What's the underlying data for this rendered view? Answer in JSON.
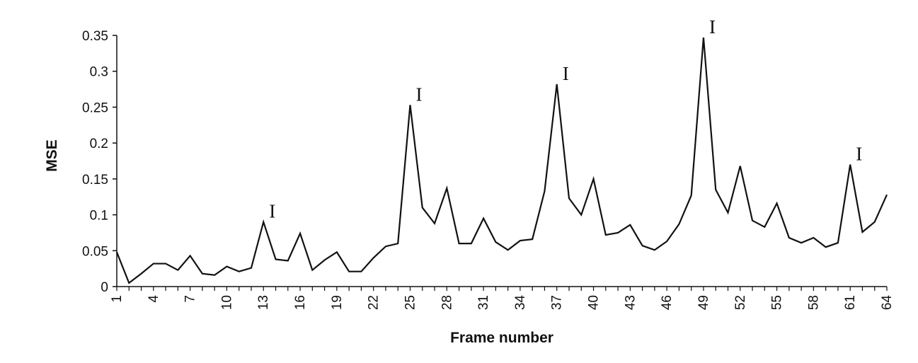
{
  "chart_data": {
    "type": "line",
    "title": "",
    "xlabel": "Frame number",
    "ylabel": "MSE",
    "xlim": [
      1,
      64
    ],
    "ylim": [
      0,
      0.35
    ],
    "grid": false,
    "yticks": [
      0,
      0.05,
      0.1,
      0.15,
      0.2,
      0.25,
      0.3,
      0.35
    ],
    "ytick_labels": [
      "0",
      "0.05",
      "0.1",
      "0.15",
      "0.2",
      "0.25",
      "0.3",
      "0.35"
    ],
    "xticks": [
      1,
      4,
      7,
      10,
      13,
      16,
      19,
      22,
      25,
      28,
      31,
      34,
      37,
      40,
      43,
      46,
      49,
      52,
      55,
      58,
      61,
      64
    ],
    "xtick_labels": [
      "1",
      "4",
      "7",
      "10",
      "13",
      "16",
      "19",
      "22",
      "25",
      "28",
      "31",
      "34",
      "37",
      "40",
      "43",
      "46",
      "49",
      "52",
      "55",
      "58",
      "61",
      "64"
    ],
    "series": [
      {
        "x": [
          1,
          2,
          3,
          4,
          5,
          6,
          7,
          8,
          9,
          10,
          11,
          12,
          13,
          14,
          15,
          16,
          17,
          18,
          19,
          20,
          21,
          22,
          23,
          24,
          25,
          26,
          27,
          28,
          29,
          30,
          31,
          32,
          33,
          34,
          35,
          36,
          37,
          38,
          39,
          40,
          41,
          42,
          43,
          44,
          45,
          46,
          47,
          48,
          49,
          50,
          51,
          52,
          53,
          54,
          55,
          56,
          57,
          58,
          59,
          60,
          61,
          62,
          63,
          64
        ],
        "values": [
          0.048,
          0.005,
          0.018,
          0.032,
          0.032,
          0.023,
          0.043,
          0.018,
          0.016,
          0.028,
          0.021,
          0.026,
          0.09,
          0.038,
          0.036,
          0.074,
          0.023,
          0.037,
          0.048,
          0.021,
          0.021,
          0.04,
          0.056,
          0.06,
          0.253,
          0.11,
          0.088,
          0.137,
          0.06,
          0.06,
          0.095,
          0.062,
          0.051,
          0.064,
          0.066,
          0.133,
          0.282,
          0.123,
          0.1,
          0.15,
          0.072,
          0.075,
          0.086,
          0.057,
          0.051,
          0.063,
          0.087,
          0.127,
          0.347,
          0.135,
          0.103,
          0.168,
          0.092,
          0.083,
          0.116,
          0.068,
          0.061,
          0.068,
          0.055,
          0.061,
          0.17,
          0.076,
          0.09,
          0.128
        ]
      }
    ],
    "annotations": [
      {
        "text": "I",
        "x": 13,
        "y": 0.09
      },
      {
        "text": "I",
        "x": 25,
        "y": 0.253
      },
      {
        "text": "I",
        "x": 37,
        "y": 0.282
      },
      {
        "text": "I",
        "x": 49,
        "y": 0.347
      },
      {
        "text": "I",
        "x": 61,
        "y": 0.17
      }
    ]
  }
}
